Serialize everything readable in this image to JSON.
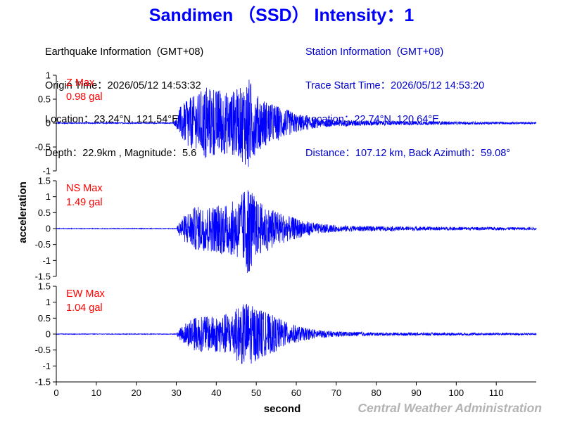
{
  "title": "Sandimen （SSD） Intensity：1",
  "earthquake_info": {
    "heading": "Earthquake Information  (GMT+08)",
    "origin_time": "Origin Time：2026/05/12 14:53:32",
    "location": "Location：23.24°N, 121.54°E",
    "depth_magnitude": "Depth：22.9km , Magnitude：5.6"
  },
  "station_info": {
    "heading": "Station Information  (GMT+08)",
    "trace_start": "Trace Start Time：2026/05/12 14:53:20",
    "location": "Location：22.74°N, 120.64°E",
    "distance": "Distance：107.12 km, Back Azimuth：59.08°"
  },
  "credit": "Central Weather Administration",
  "colors": {
    "trace": "#0000ff",
    "label": "#ff0000",
    "title": "#0000ff"
  },
  "chart_data": {
    "type": "line",
    "xlabel": "second",
    "ylabel": "acceleration",
    "xlim": [
      0,
      120
    ],
    "xticks": [
      0,
      10,
      20,
      30,
      40,
      50,
      60,
      70,
      80,
      90,
      100,
      110
    ],
    "x_tick_labels": [
      "0",
      "10",
      "20",
      "30",
      "40",
      "50",
      "60",
      "70",
      "80",
      "90",
      "100",
      "110"
    ],
    "grid": false,
    "series": [
      {
        "name": "Z",
        "max_label": "Z Max",
        "max_value": "0.98 gal",
        "ylim": [
          -1,
          1
        ],
        "yticks": [
          -1,
          -0.5,
          0,
          0.5,
          1
        ],
        "y_tick_labels": [
          "-1",
          "-0.5",
          "0",
          "0.5",
          "1"
        ],
        "onset_s": 29.5,
        "peak_envelope": [
          [
            0,
            0.01
          ],
          [
            29,
            0.01
          ],
          [
            30,
            0.08
          ],
          [
            31,
            0.35
          ],
          [
            33,
            0.5
          ],
          [
            35,
            0.6
          ],
          [
            37,
            0.75
          ],
          [
            40,
            0.7
          ],
          [
            43,
            0.65
          ],
          [
            46,
            0.75
          ],
          [
            48,
            0.98
          ],
          [
            50,
            0.6
          ],
          [
            53,
            0.45
          ],
          [
            56,
            0.35
          ],
          [
            60,
            0.2
          ],
          [
            65,
            0.1
          ],
          [
            70,
            0.07
          ],
          [
            80,
            0.05
          ],
          [
            100,
            0.03
          ],
          [
            120,
            0.02
          ]
        ]
      },
      {
        "name": "NS",
        "max_label": "NS Max",
        "max_value": "1.49 gal",
        "ylim": [
          -1.5,
          1.5
        ],
        "yticks": [
          -1.5,
          -1,
          -0.5,
          0,
          0.5,
          1,
          1.5
        ],
        "y_tick_labels": [
          "-1.5",
          "-1",
          "-0.5",
          "0",
          "0.5",
          "1",
          "1.5"
        ],
        "onset_s": 30.0,
        "peak_envelope": [
          [
            0,
            0.01
          ],
          [
            30,
            0.01
          ],
          [
            31,
            0.3
          ],
          [
            33,
            0.55
          ],
          [
            35,
            0.7
          ],
          [
            38,
            0.7
          ],
          [
            41,
            0.8
          ],
          [
            44,
            0.85
          ],
          [
            46,
            1.0
          ],
          [
            48,
            1.49
          ],
          [
            50,
            0.9
          ],
          [
            52,
            0.75
          ],
          [
            55,
            0.55
          ],
          [
            58,
            0.4
          ],
          [
            62,
            0.25
          ],
          [
            66,
            0.15
          ],
          [
            70,
            0.1
          ],
          [
            80,
            0.07
          ],
          [
            100,
            0.05
          ],
          [
            120,
            0.04
          ]
        ]
      },
      {
        "name": "EW",
        "max_label": "EW Max",
        "max_value": "1.04 gal",
        "ylim": [
          -1.5,
          1.5
        ],
        "yticks": [
          -1.5,
          -1,
          -0.5,
          0,
          0.5,
          1,
          1.5
        ],
        "y_tick_labels": [
          "-1.5",
          "-1",
          "-0.5",
          "0",
          "0.5",
          "1",
          "1.5"
        ],
        "onset_s": 30.5,
        "peak_envelope": [
          [
            0,
            0.01
          ],
          [
            30,
            0.01
          ],
          [
            31,
            0.2
          ],
          [
            33,
            0.4
          ],
          [
            35,
            0.55
          ],
          [
            38,
            0.55
          ],
          [
            41,
            0.6
          ],
          [
            44,
            0.7
          ],
          [
            46,
            0.95
          ],
          [
            47.5,
            1.04
          ],
          [
            50,
            0.85
          ],
          [
            52,
            0.7
          ],
          [
            55,
            0.55
          ],
          [
            58,
            0.35
          ],
          [
            62,
            0.2
          ],
          [
            66,
            0.12
          ],
          [
            70,
            0.08
          ],
          [
            80,
            0.05
          ],
          [
            100,
            0.04
          ],
          [
            120,
            0.03
          ]
        ]
      }
    ]
  }
}
